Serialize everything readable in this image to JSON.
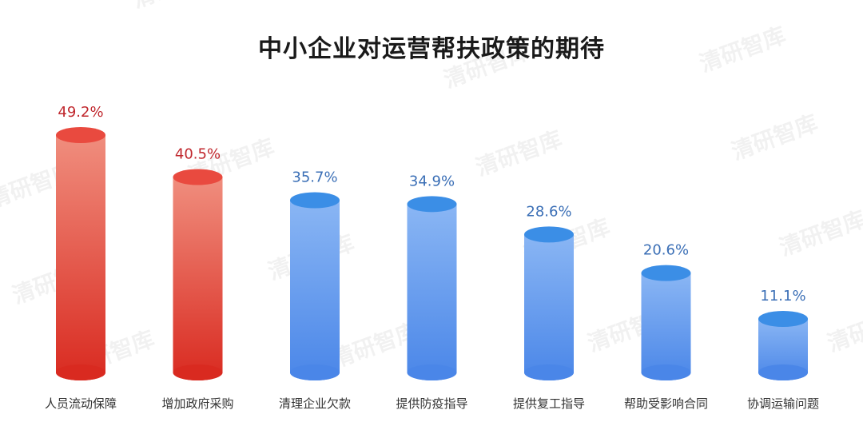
{
  "chart_data": {
    "type": "bar",
    "title": "中小企业对运营帮扶政策的期待",
    "categories": [
      "人员流动保障",
      "增加政府采购",
      "清理企业欠款",
      "提供防疫指导",
      "提供复工指导",
      "帮助受影响合同",
      "协调运输问题"
    ],
    "values": [
      49.2,
      40.5,
      35.7,
      34.9,
      28.6,
      20.6,
      11.1
    ],
    "value_labels": [
      "49.2%",
      "40.5%",
      "35.7%",
      "34.9%",
      "28.6%",
      "20.6%",
      "11.1%"
    ],
    "highlight": [
      true,
      true,
      false,
      false,
      false,
      false,
      false
    ],
    "ylim": [
      0,
      50
    ],
    "grid": false,
    "colors": {
      "highlight_top": "#e94a3f",
      "highlight_side": "#f08e7e",
      "highlight_bottom": "#d92a20",
      "highlight_text": "#c0272d",
      "normal_top": "#3b8ee6",
      "normal_side": "#8ab6f4",
      "normal_bottom": "#4a86e8",
      "normal_text": "#3b6fb6"
    }
  },
  "watermark": "清研智库"
}
